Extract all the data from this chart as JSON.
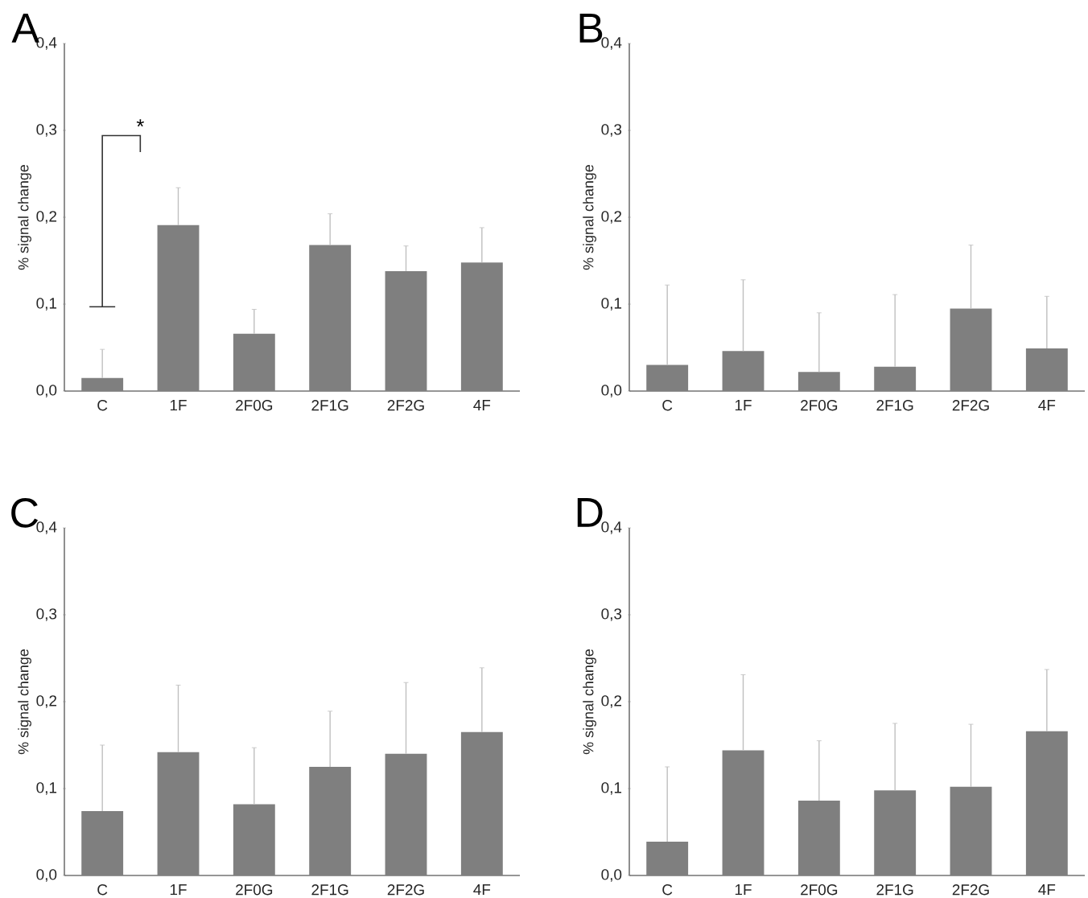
{
  "chart_data": [
    {
      "type": "bar",
      "title": "A",
      "ylabel": "% signal change",
      "categories": [
        "C",
        "1F",
        "2F0G",
        "2F1G",
        "2F2G",
        "4F"
      ],
      "color": "#7f7f7f",
      "values": [
        0.015,
        0.191,
        0.066,
        0.168,
        0.138,
        0.148
      ],
      "errors": [
        [
          0.015,
          0.048
        ],
        [
          0.191,
          0.234
        ],
        [
          0.066,
          0.094
        ],
        [
          0.168,
          0.204
        ],
        [
          0.138,
          0.167
        ],
        [
          0.148,
          0.188
        ]
      ],
      "ylim": [
        0,
        0.4
      ],
      "yticks": [
        {
          "value": 0,
          "label": "0,0"
        },
        {
          "value": 0.1,
          "label": "0,1"
        },
        {
          "value": 0.2,
          "label": "0,2"
        },
        {
          "value": 0.3,
          "label": "0,3"
        },
        {
          "value": 0.4,
          "label": "0,4"
        }
      ],
      "annotations": [
        "*"
      ]
    },
    {
      "type": "bar",
      "title": "B",
      "ylabel": "% signal change",
      "categories": [
        "C",
        "1F",
        "2F0G",
        "2F1G",
        "2F2G",
        "4F"
      ],
      "color": "#7f7f7f",
      "values": [
        0.03,
        0.046,
        0.022,
        0.028,
        0.095,
        0.049
      ],
      "errors": [
        [
          0.03,
          0.122
        ],
        [
          0.046,
          0.128
        ],
        [
          0.022,
          0.09
        ],
        [
          0.028,
          0.111
        ],
        [
          0.095,
          0.168
        ],
        [
          0.049,
          0.109
        ]
      ],
      "ylim": [
        0,
        0.4
      ],
      "yticks": [
        {
          "value": 0,
          "label": "0,0"
        },
        {
          "value": 0.1,
          "label": "0,1"
        },
        {
          "value": 0.2,
          "label": "0,2"
        },
        {
          "value": 0.3,
          "label": "0,3"
        },
        {
          "value": 0.4,
          "label": "0,4"
        }
      ]
    },
    {
      "type": "bar",
      "title": "C",
      "ylabel": "% signal change",
      "categories": [
        "C",
        "1F",
        "2F0G",
        "2F1G",
        "2F2G",
        "4F"
      ],
      "color": "#7f7f7f",
      "values": [
        0.074,
        0.142,
        0.082,
        0.125,
        0.14,
        0.165
      ],
      "errors": [
        [
          0.074,
          0.15
        ],
        [
          0.142,
          0.219
        ],
        [
          0.082,
          0.147
        ],
        [
          0.125,
          0.189
        ],
        [
          0.14,
          0.222
        ],
        [
          0.165,
          0.239
        ]
      ],
      "ylim": [
        0,
        0.4
      ],
      "yticks": [
        {
          "value": 0,
          "label": "0,0"
        },
        {
          "value": 0.1,
          "label": "0,1"
        },
        {
          "value": 0.2,
          "label": "0,2"
        },
        {
          "value": 0.3,
          "label": "0,3"
        },
        {
          "value": 0.4,
          "label": "0,4"
        }
      ]
    },
    {
      "type": "bar",
      "title": "D",
      "ylabel": "% signal change",
      "categories": [
        "C",
        "1F",
        "2F0G",
        "2F1G",
        "2F2G",
        "4F"
      ],
      "color": "#7f7f7f",
      "values": [
        0.039,
        0.144,
        0.086,
        0.098,
        0.102,
        0.166
      ],
      "errors": [
        [
          0.039,
          0.125
        ],
        [
          0.144,
          0.231
        ],
        [
          0.086,
          0.155
        ],
        [
          0.098,
          0.175
        ],
        [
          0.102,
          0.174
        ],
        [
          0.166,
          0.237
        ]
      ],
      "ylim": [
        0,
        0.4
      ],
      "yticks": [
        {
          "value": 0,
          "label": "0,0"
        },
        {
          "value": 0.1,
          "label": "0,1"
        },
        {
          "value": 0.2,
          "label": "0,2"
        },
        {
          "value": 0.3,
          "label": "0,3"
        },
        {
          "value": 0.4,
          "label": "0,4"
        }
      ]
    }
  ]
}
